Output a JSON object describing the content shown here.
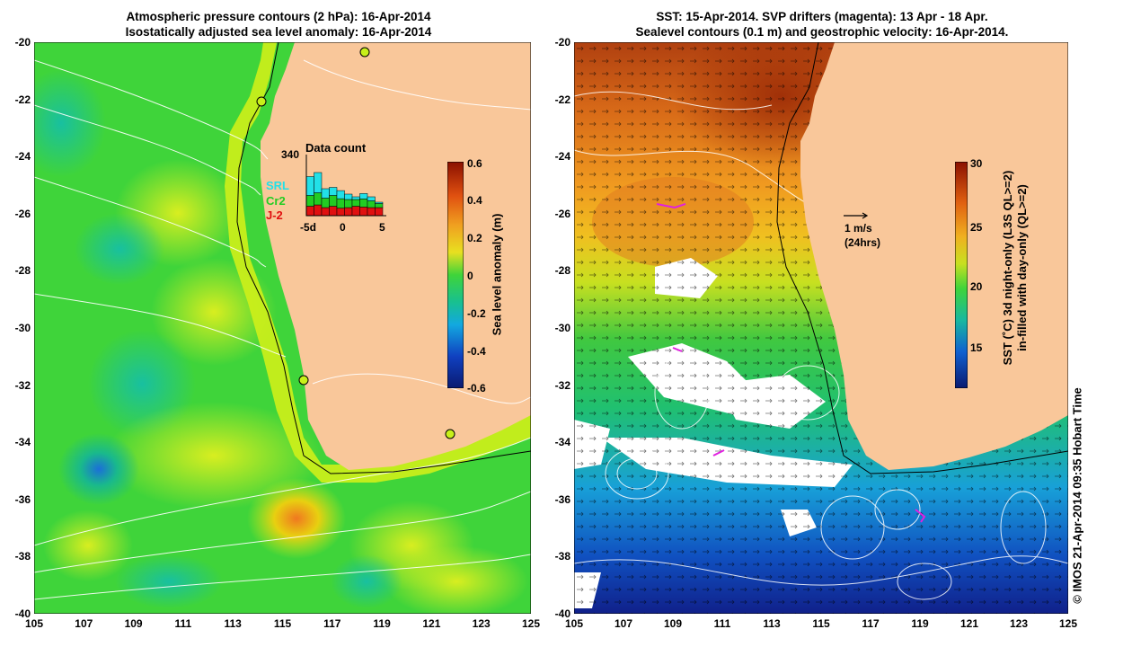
{
  "left_panel": {
    "title_line1": "Atmospheric pressure contours (2 hPa): 16-Apr-2014",
    "title_line2": "Isostatically adjusted sea level anomaly: 16-Apr-2014",
    "colorbar": {
      "label": "Sea level anomaly (m)",
      "ticks": [
        "0.6",
        "0.4",
        "0.2",
        "0",
        "-0.2",
        "-0.4",
        "-0.6"
      ]
    },
    "data_count": {
      "title": "Data count",
      "ymax": "340",
      "series": [
        "SRL",
        "Cr2",
        "J-2"
      ],
      "series_colors": [
        "#22e0e8",
        "#22cc22",
        "#e01010"
      ],
      "xticks": [
        "-5d",
        "0",
        "5"
      ],
      "bars": [
        {
          "red": 0.35,
          "green": 0.4,
          "cyan": 0.7
        },
        {
          "red": 0.4,
          "green": 0.45,
          "cyan": 0.75
        },
        {
          "red": 0.3,
          "green": 0.35,
          "cyan": 0.35
        },
        {
          "red": 0.35,
          "green": 0.4,
          "cyan": 0.3
        },
        {
          "red": 0.28,
          "green": 0.35,
          "cyan": 0.3
        },
        {
          "red": 0.3,
          "green": 0.3,
          "cyan": 0.2
        },
        {
          "red": 0.35,
          "green": 0.25,
          "cyan": 0.1
        },
        {
          "red": 0.32,
          "green": 0.3,
          "cyan": 0.2
        },
        {
          "red": 0.3,
          "green": 0.25,
          "cyan": 0.15
        },
        {
          "red": 0.3,
          "green": 0.15,
          "cyan": 0.05
        }
      ]
    }
  },
  "right_panel": {
    "title_line1": "SST: 15-Apr-2014. SVP drifters (magenta): 13 Apr - 18 Apr.",
    "title_line2": "Sealevel contours (0.1 m) and geostrophic velocity: 16-Apr-2014.",
    "colorbar": {
      "label_line1": "SST (˚C)  3d night-only (L3S QL>=2)",
      "label_line2": "in-filled with day-only (QL>=2)",
      "ticks": [
        "30",
        "25",
        "20",
        "15"
      ]
    },
    "velocity_scale": {
      "line1": "1 m/s",
      "line2": "(24hrs)"
    }
  },
  "axes": {
    "lat_ticks": [
      "-20",
      "-22",
      "-24",
      "-26",
      "-28",
      "-30",
      "-32",
      "-34",
      "-36",
      "-38",
      "-40"
    ],
    "lon_ticks": [
      "105",
      "107",
      "109",
      "111",
      "113",
      "115",
      "117",
      "119",
      "121",
      "123",
      "125"
    ]
  },
  "credit": "© IMOS 21-Apr-2014 09:35 Hobart Time",
  "colors": {
    "land": "#f9c79a",
    "sla_low": "#0a1a8c",
    "sla_mid": "#2ad42a",
    "sla_high": "#8a0000",
    "sst_cold": "#0a1a8c",
    "sst_warm": "#8a0000"
  }
}
